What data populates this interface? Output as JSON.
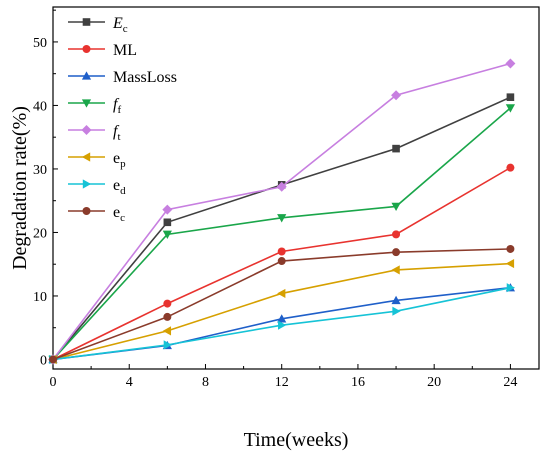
{
  "chart_data": {
    "type": "line",
    "title": "",
    "xlabel": "Time(weeks)",
    "ylabel": "Degradation rate(%)",
    "xlim": [
      0,
      25.5
    ],
    "ylim": [
      -1.5,
      55.5
    ],
    "xticks": [
      0,
      4,
      8,
      12,
      16,
      20,
      24
    ],
    "yticks": [
      0,
      10,
      20,
      30,
      40,
      50
    ],
    "grid": false,
    "legend_position": "top-left",
    "x": [
      0,
      6,
      12,
      18,
      24
    ],
    "series": [
      {
        "name": "Ec",
        "label_main": "E",
        "label_sub": "c",
        "label_italic": true,
        "color": "#404040",
        "marker": "square",
        "values": [
          0,
          21.6,
          27.5,
          33.2,
          41.3
        ]
      },
      {
        "name": "ML",
        "label_main": "ML",
        "label_sub": "",
        "label_italic": false,
        "color": "#e8332f",
        "marker": "circle",
        "values": [
          0,
          8.8,
          17.0,
          19.7,
          30.2
        ]
      },
      {
        "name": "MassLoss",
        "label_main": "MassLoss",
        "label_sub": "",
        "label_italic": false,
        "color": "#1f5fc9",
        "marker": "triangle-up",
        "values": [
          0,
          2.2,
          6.4,
          9.3,
          11.3
        ]
      },
      {
        "name": "ff",
        "label_main": "f",
        "label_sub": "f",
        "label_italic": true,
        "color": "#1aa64a",
        "marker": "triangle-down",
        "values": [
          0,
          19.7,
          22.3,
          24.1,
          39.6
        ]
      },
      {
        "name": "ft",
        "label_main": "f",
        "label_sub": "t",
        "label_italic": true,
        "color": "#c77fe0",
        "marker": "diamond",
        "values": [
          0,
          23.6,
          27.2,
          41.6,
          46.6
        ]
      },
      {
        "name": "ep",
        "label_main": "e",
        "label_sub": "p",
        "label_italic": false,
        "color": "#d6a000",
        "marker": "triangle-left",
        "values": [
          0,
          4.5,
          10.4,
          14.1,
          15.1
        ]
      },
      {
        "name": "ed",
        "label_main": "e",
        "label_sub": "d",
        "label_italic": false,
        "color": "#16c3d6",
        "marker": "triangle-right",
        "values": [
          0,
          2.3,
          5.4,
          7.6,
          11.3
        ]
      },
      {
        "name": "ec",
        "label_main": "e",
        "label_sub": "c",
        "label_italic": false,
        "color": "#8a3b2b",
        "marker": "circle",
        "values": [
          0,
          6.7,
          15.5,
          16.9,
          17.4
        ]
      }
    ]
  }
}
